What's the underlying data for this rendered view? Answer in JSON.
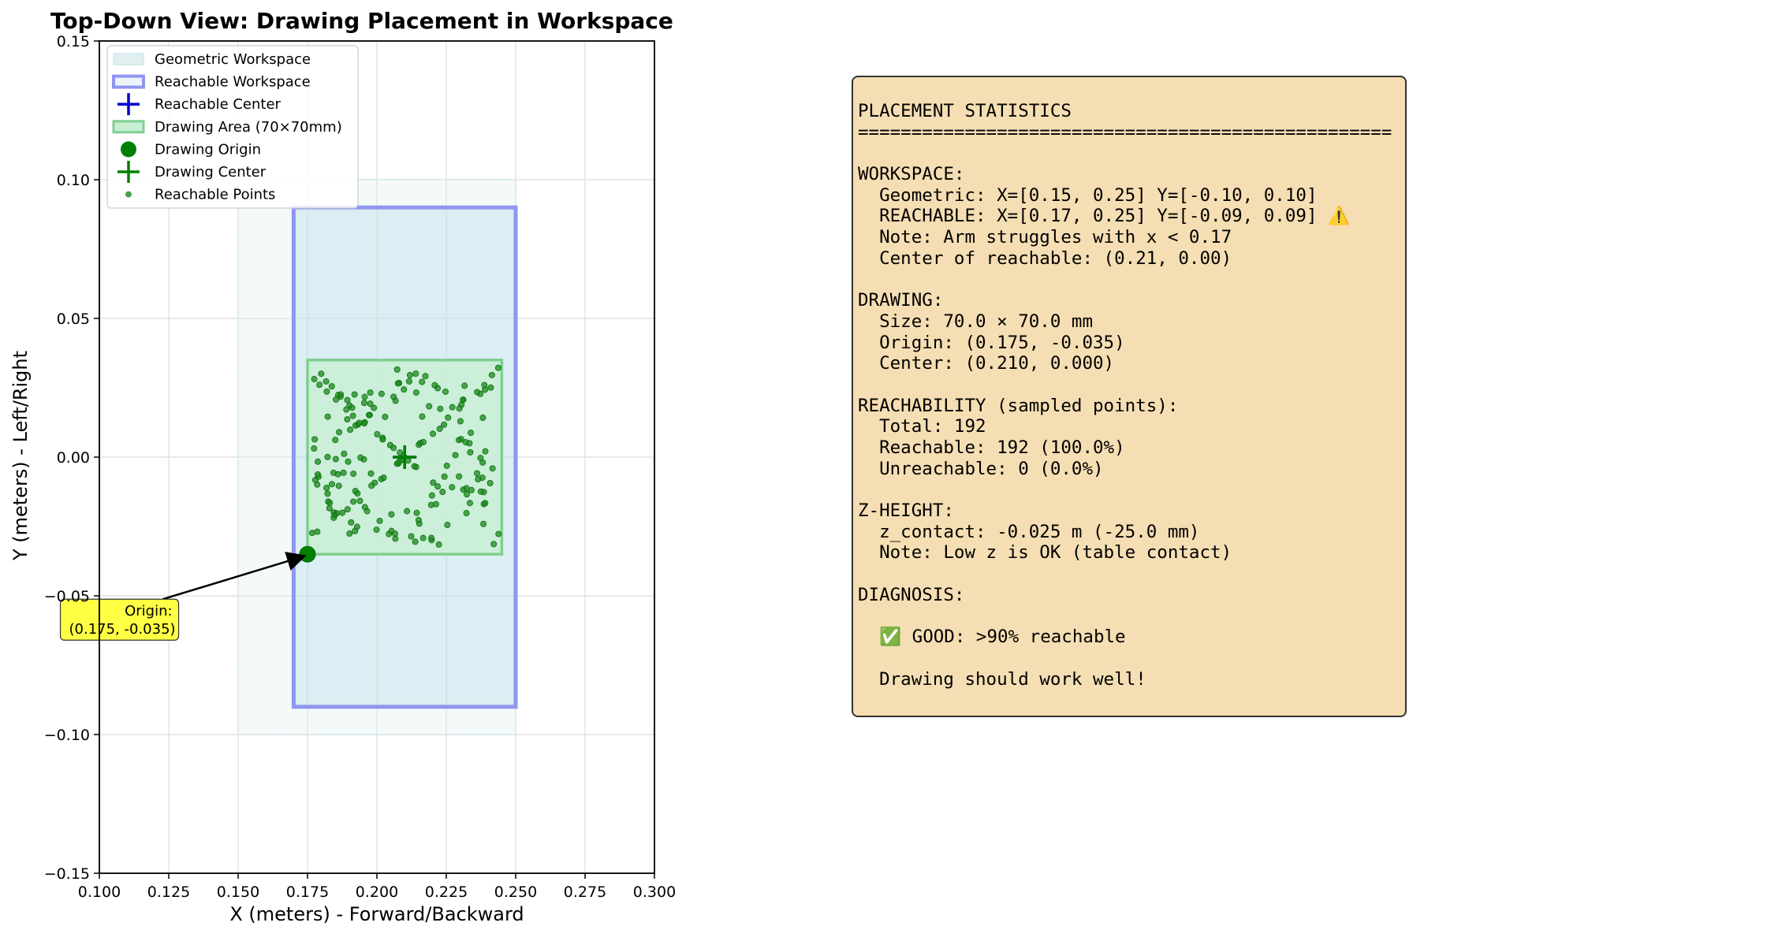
{
  "chart_data": {
    "type": "scatter",
    "title": "Top-Down View: Drawing Placement in Workspace",
    "xlabel": "X (meters) - Forward/Backward",
    "ylabel": "Y (meters) - Left/Right",
    "xlim": [
      0.1,
      0.3
    ],
    "ylim": [
      -0.15,
      0.15
    ],
    "xticks": [
      0.1,
      0.125,
      0.15,
      0.175,
      0.2,
      0.225,
      0.25,
      0.275,
      0.3
    ],
    "xtick_labels": [
      "0.100",
      "0.125",
      "0.150",
      "0.175",
      "0.200",
      "0.225",
      "0.250",
      "0.275",
      "0.300"
    ],
    "yticks": [
      0.15,
      0.1,
      0.05,
      0.0,
      -0.05,
      -0.1,
      -0.15
    ],
    "ytick_labels": [
      "0.15",
      "0.10",
      "0.05",
      "0.00",
      "−0.05",
      "−0.10",
      "−0.15"
    ],
    "grid": true,
    "legend_position": "upper left",
    "legend": [
      {
        "label": "Geometric Workspace",
        "kind": "geo-rect"
      },
      {
        "label": "Reachable Workspace",
        "kind": "reach-rect"
      },
      {
        "label": "Reachable Center",
        "kind": "blue-plus"
      },
      {
        "label": "Drawing Area (70×70mm)",
        "kind": "draw-rect"
      },
      {
        "label": "Drawing Origin",
        "kind": "green-dot"
      },
      {
        "label": "Drawing Center",
        "kind": "green-plus"
      },
      {
        "label": "Reachable Points",
        "kind": "small-dot"
      }
    ],
    "regions": {
      "geometric": {
        "x": [
          0.15,
          0.25
        ],
        "y": [
          -0.1,
          0.1
        ]
      },
      "reachable": {
        "x": [
          0.17,
          0.25
        ],
        "y": [
          -0.09,
          0.09
        ]
      },
      "drawing": {
        "x": [
          0.175,
          0.245
        ],
        "y": [
          -0.035,
          0.035
        ]
      }
    },
    "reachable_center": [
      0.21,
      0.0
    ],
    "drawing_origin": [
      0.175,
      -0.035
    ],
    "drawing_center": [
      0.21,
      0.0
    ],
    "annotation": {
      "text_lines": [
        "Origin:",
        "(0.175, -0.035)"
      ],
      "target": [
        0.175,
        -0.035
      ],
      "text_at": [
        0.128,
        -0.062
      ]
    },
    "reachable_points_count": 192,
    "colors": {
      "geometric_fill": "#e0f0f0",
      "reachable_fill": "#add8e6",
      "reachable_edge": "#8f96f0",
      "drawing_fill": "#c8eed4",
      "drawing_edge": "#7fcf8f",
      "points": "#1a8c1a",
      "origin": "#008000",
      "center_marker": "#008000",
      "reach_center_marker": "#0000cc",
      "annotation_bg": "#ffff44",
      "panel_bg": "#f5deb3"
    }
  },
  "stats_panel": {
    "lines": [
      "PLACEMENT STATISTICS",
      "==================================================",
      "",
      "WORKSPACE:",
      "  Geometric: X=[0.15, 0.25] Y=[-0.10, 0.10]",
      "  REACHABLE: X=[0.17, 0.25] Y=[-0.09, 0.09] ⚠️",
      "  Note: Arm struggles with x < 0.17",
      "  Center of reachable: (0.21, 0.00)",
      "",
      "DRAWING:",
      "  Size: 70.0 × 70.0 mm",
      "  Origin: (0.175, -0.035)",
      "  Center: (0.210, 0.000)",
      "",
      "REACHABILITY (sampled points):",
      "  Total: 192",
      "  Reachable: 192 (100.0%)",
      "  Unreachable: 0 (0.0%)",
      "",
      "Z-HEIGHT:",
      "  z_contact: -0.025 m (-25.0 mm)",
      "  Note: Low z is OK (table contact)",
      "",
      "DIAGNOSIS:",
      "",
      "  ✅ GOOD: >90% reachable",
      "",
      "  Drawing should work well!"
    ]
  }
}
